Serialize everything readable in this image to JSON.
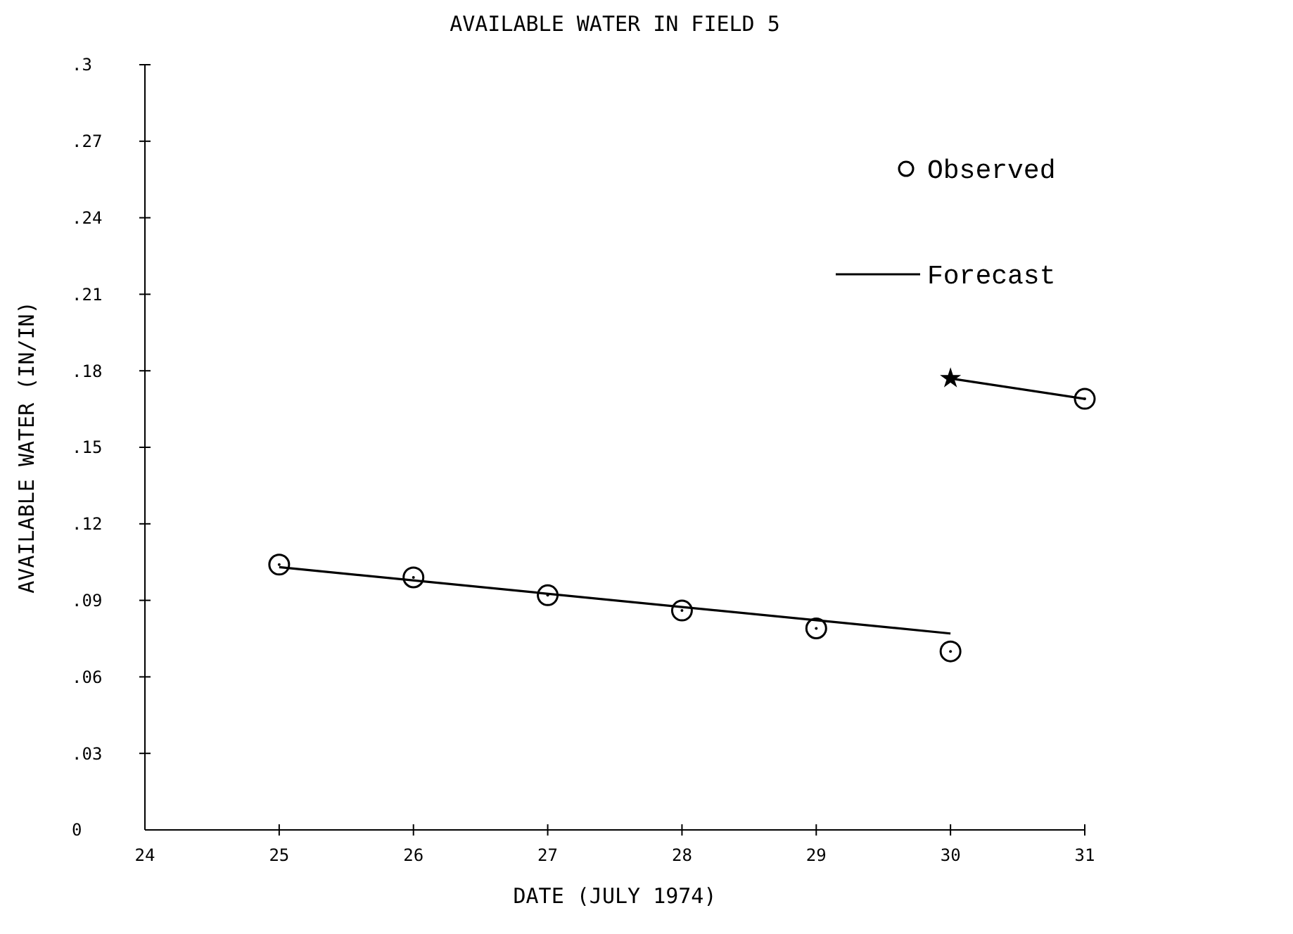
{
  "chart_data": {
    "type": "scatter",
    "title": "AVAILABLE WATER IN FIELD 5",
    "xlabel": "DATE (JULY 1974)",
    "ylabel": "AVAILABLE WATER (IN/IN)",
    "xlim": [
      24,
      31
    ],
    "xticks": [
      24,
      25,
      26,
      27,
      28,
      29,
      30,
      31
    ],
    "ylim": [
      0,
      0.3
    ],
    "yticks": [
      {
        "value": 0,
        "label": "0"
      },
      {
        "value": 0.03,
        "label": ".03"
      },
      {
        "value": 0.06,
        "label": ".06"
      },
      {
        "value": 0.09,
        "label": ".09"
      },
      {
        "value": 0.12,
        "label": ".12"
      },
      {
        "value": 0.15,
        "label": ".15"
      },
      {
        "value": 0.18,
        "label": ".18"
      },
      {
        "value": 0.21,
        "label": ".21"
      },
      {
        "value": 0.24,
        "label": ".24"
      },
      {
        "value": 0.27,
        "label": ".27"
      },
      {
        "value": 0.3,
        "label": ".3"
      }
    ],
    "grid": false,
    "legend": "top right",
    "series": [
      {
        "name": "Observed",
        "type": "scatter",
        "marker": "circle",
        "color": "#000000",
        "x": [
          25,
          26,
          27,
          28,
          29,
          30,
          31
        ],
        "values": [
          0.104,
          0.099,
          0.092,
          0.086,
          0.079,
          0.07,
          0.169
        ]
      },
      {
        "name": "Forecast",
        "type": "line",
        "marker": "none",
        "color": "#000000",
        "x": [
          25,
          30
        ],
        "values": [
          0.103,
          0.077
        ]
      },
      {
        "type": "line",
        "marker": "none",
        "color": "#000000",
        "x": [
          30,
          31
        ],
        "values": [
          0.177,
          0.169
        ]
      },
      {
        "type": "scatter",
        "marker": "star",
        "color": "#000000",
        "x": [
          30
        ],
        "values": [
          0.177
        ]
      }
    ]
  }
}
